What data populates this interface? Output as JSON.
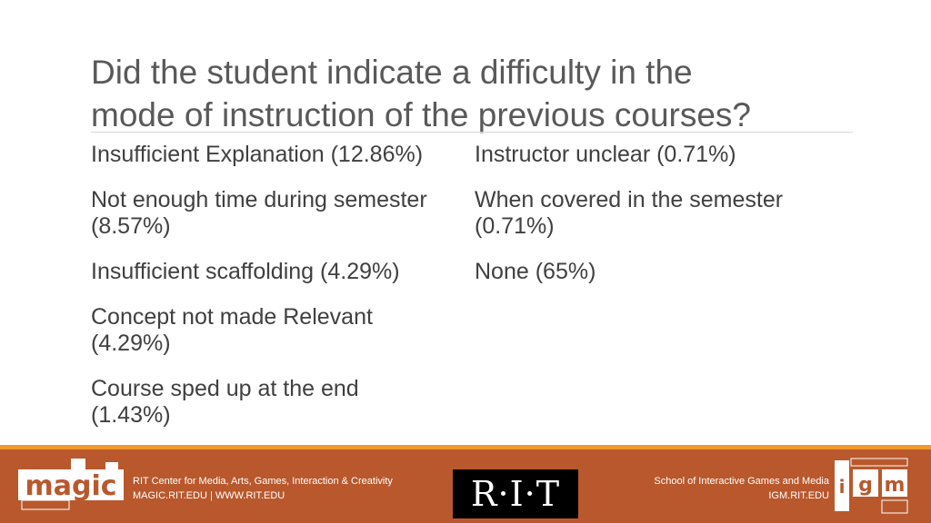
{
  "slide": {
    "title_lines": [
      "Did the student indicate a difficulty in the",
      "mode of instruction of the previous courses?"
    ],
    "left_items": [
      [
        "Insufficient Explanation (12.86%)"
      ],
      [
        "Not enough time during semester",
        "(8.57%)"
      ],
      [
        "Insufficient scaffolding (4.29%)"
      ],
      [
        "Concept not made Relevant",
        "(4.29%)"
      ],
      [
        "Course sped up at the end",
        "(1.43%)"
      ]
    ],
    "right_items": [
      [
        "Instructor unclear (0.71%)"
      ],
      [
        "When covered in the semester",
        "(0.71%)"
      ],
      [
        "None (65%)"
      ]
    ]
  },
  "footer": {
    "left_lines": [
      "RIT Center for Media, Arts, Games, Interaction & Creativity",
      "MAGIC.RIT.EDU | WWW.RIT.EDU"
    ],
    "rit_logo_text": "R·I·T",
    "right_lines": [
      "School of Interactive Games and Media",
      "IGM.RIT.EDU"
    ],
    "magic_logo_text": "magic",
    "igm_logo_letters": [
      "i",
      "g",
      "m"
    ],
    "colors": {
      "footer_bg": "#b9582d",
      "footer_stripe": "#f39a2a",
      "title_text": "#595959",
      "body_text": "#404040"
    }
  }
}
